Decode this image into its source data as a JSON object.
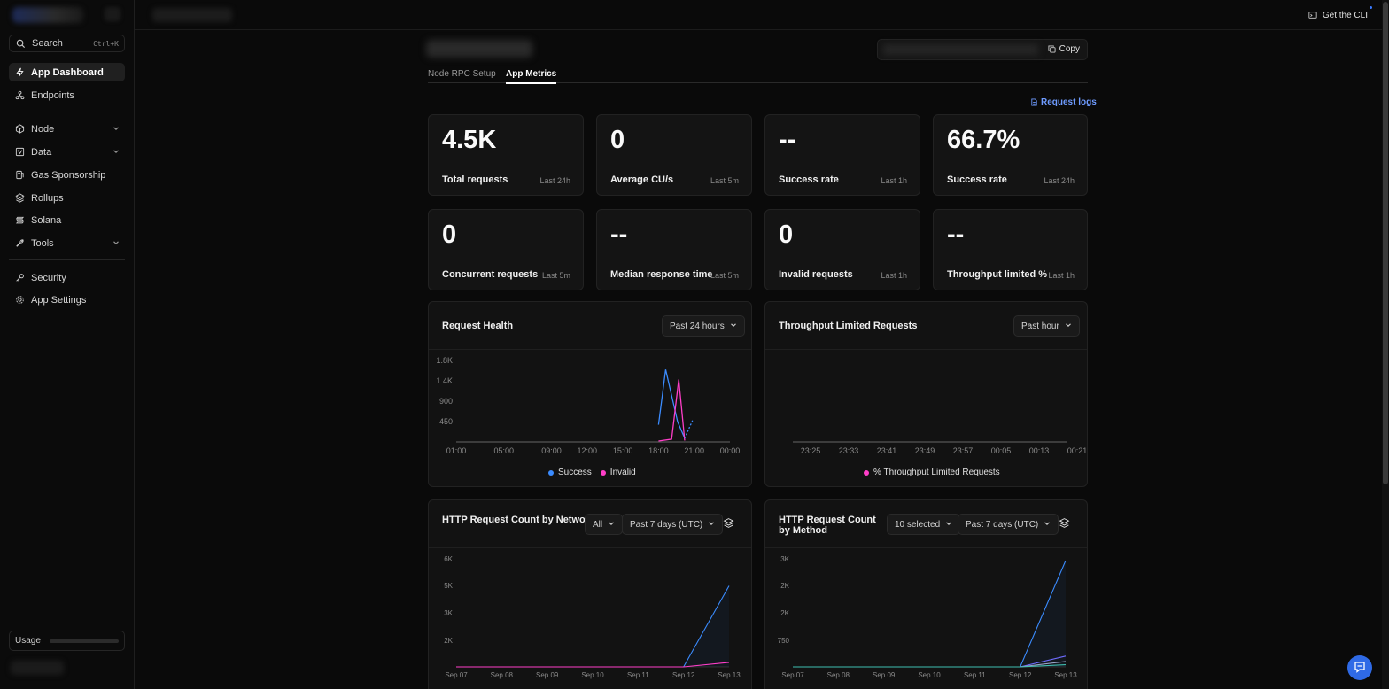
{
  "sidebar": {
    "search_label": "Search",
    "search_shortcut": "Ctrl+K",
    "items": [
      {
        "label": "App Dashboard"
      },
      {
        "label": "Endpoints"
      },
      {
        "label": "Node"
      },
      {
        "label": "Data"
      },
      {
        "label": "Gas Sponsorship"
      },
      {
        "label": "Rollups"
      },
      {
        "label": "Solana"
      },
      {
        "label": "Tools"
      },
      {
        "label": "Security"
      },
      {
        "label": "App Settings"
      }
    ],
    "usage_label": "Usage"
  },
  "topbar": {
    "cli_label": "Get the CLI"
  },
  "header": {
    "copy_label": "Copy"
  },
  "tabs": [
    {
      "label": "Node RPC Setup"
    },
    {
      "label": "App Metrics"
    }
  ],
  "request_logs_label": "Request logs",
  "metrics": [
    {
      "value": "4.5K",
      "label": "Total requests",
      "period": "Last 24h"
    },
    {
      "value": "0",
      "label": "Average CU/s",
      "period": "Last 5m"
    },
    {
      "value": "--",
      "label": "Success rate",
      "period": "Last 1h"
    },
    {
      "value": "66.7%",
      "label": "Success rate",
      "period": "Last 24h"
    },
    {
      "value": "0",
      "label": "Concurrent requests",
      "period": "Last 5m"
    },
    {
      "value": "--",
      "label": "Median response time",
      "period": "Last 5m"
    },
    {
      "value": "0",
      "label": "Invalid requests",
      "period": "Last 1h"
    },
    {
      "value": "--",
      "label": "Throughput limited %",
      "period": "Last 1h"
    }
  ],
  "panels": {
    "request_health": {
      "title": "Request Health",
      "range": "Past 24 hours"
    },
    "throughput": {
      "title": "Throughput Limited Requests",
      "range": "Past hour"
    },
    "by_network": {
      "title": "HTTP Request Count by Network",
      "filter": "All",
      "range": "Past 7 days (UTC)"
    },
    "by_method": {
      "title": "HTTP Request Count by Method",
      "filter": "10 selected",
      "range": "Past 7 days (UTC)"
    }
  },
  "colors": {
    "success": "#3b8cff",
    "invalid": "#ff3ec8",
    "throughput": "#ff3ec8",
    "accent": "#6e9bff"
  },
  "chart_data": [
    {
      "type": "line",
      "title": "Request Health",
      "x": [
        "01:00",
        "05:00",
        "09:00",
        "12:00",
        "15:00",
        "18:00",
        "21:00",
        "00:00"
      ],
      "y_ticks": [
        "1.8K",
        "1.4K",
        "900",
        "450"
      ],
      "ylim": [
        0,
        1800
      ],
      "series": [
        {
          "name": "Success",
          "points": [
            [
              18.0,
              380
            ],
            [
              18.6,
              1600
            ],
            [
              19.6,
              450
            ],
            [
              20.2,
              80
            ]
          ]
        },
        {
          "name": "Invalid",
          "points": [
            [
              18.0,
              20
            ],
            [
              19.1,
              60
            ],
            [
              19.7,
              1380
            ],
            [
              20.2,
              30
            ]
          ]
        }
      ]
    },
    {
      "type": "line",
      "title": "Throughput Limited Requests",
      "x": [
        "23:25",
        "23:33",
        "23:41",
        "23:49",
        "23:57",
        "00:05",
        "00:13",
        "00:21"
      ],
      "series": [
        {
          "name": "% Throughput Limited Requests",
          "points": []
        }
      ]
    },
    {
      "type": "area",
      "title": "HTTP Request Count by Network",
      "x": [
        "Sep 07",
        "Sep 08",
        "Sep 09",
        "Sep 10",
        "Sep 11",
        "Sep 12",
        "Sep 13"
      ],
      "y_ticks": [
        "6K",
        "5K",
        "3K",
        "2K"
      ],
      "ylim": [
        0,
        6000
      ],
      "series": [
        {
          "values": [
            0,
            0,
            0,
            0,
            0,
            0,
            4500
          ]
        },
        {
          "values": [
            0,
            0,
            0,
            0,
            0,
            0,
            250
          ]
        }
      ]
    },
    {
      "type": "area",
      "title": "HTTP Request Count by Method",
      "x": [
        "Sep 07",
        "Sep 08",
        "Sep 09",
        "Sep 10",
        "Sep 11",
        "Sep 12",
        "Sep 13"
      ],
      "y_ticks": [
        "3K",
        "2K",
        "2K",
        "750"
      ],
      "ylim": [
        0,
        3000
      ],
      "series": [
        {
          "values": [
            0,
            0,
            0,
            0,
            0,
            0,
            2950
          ]
        },
        {
          "values": [
            0,
            0,
            0,
            0,
            0,
            0,
            300
          ]
        },
        {
          "values": [
            0,
            0,
            0,
            0,
            0,
            0,
            150
          ]
        },
        {
          "values": [
            0,
            0,
            0,
            0,
            0,
            0,
            60
          ]
        }
      ]
    }
  ]
}
